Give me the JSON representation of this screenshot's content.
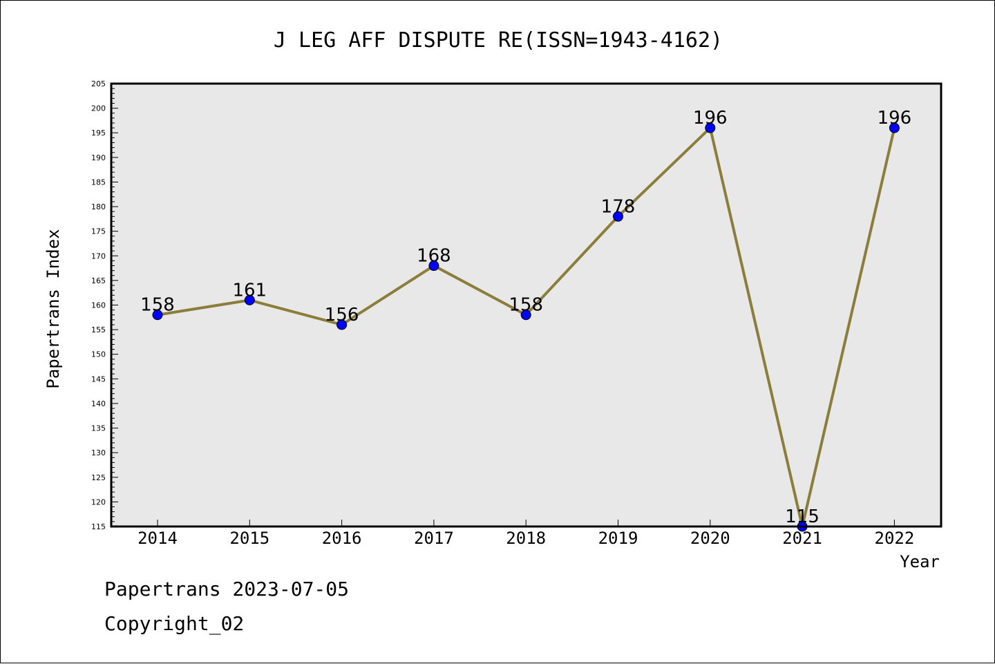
{
  "chart_data": {
    "type": "line",
    "title": "J LEG AFF DISPUTE RE(ISSN=1943-4162)",
    "xlabel": "Year",
    "ylabel": "Papertrans Index",
    "categories": [
      "2014",
      "2015",
      "2016",
      "2017",
      "2018",
      "2019",
      "2020",
      "2021",
      "2022"
    ],
    "values": [
      158,
      161,
      156,
      168,
      158,
      178,
      196,
      115,
      196
    ],
    "ylim": [
      115,
      205
    ],
    "yticks": [
      115,
      120,
      125,
      130,
      135,
      140,
      145,
      150,
      155,
      160,
      165,
      170,
      175,
      180,
      185,
      190,
      195,
      200,
      205
    ],
    "grid": false,
    "data_labels": true,
    "colors": {
      "line": "#8b7d3a",
      "marker": "#0000ff",
      "plot_background": "#e8e8e8"
    }
  },
  "footer": {
    "line1": "Papertrans 2023-07-05",
    "line2": "Copyright_02"
  }
}
